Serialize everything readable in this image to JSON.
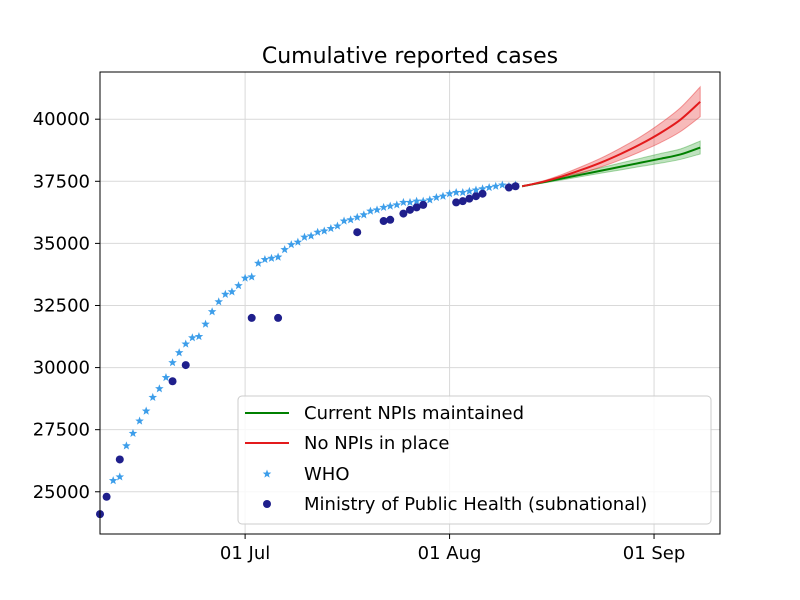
{
  "chart_data": {
    "type": "line",
    "title": "Cumulative reported cases",
    "xlabel": "",
    "ylabel": "",
    "x_range": [
      "2020-06-09",
      "2020-09-11"
    ],
    "ylim": [
      23300,
      41900
    ],
    "grid": true,
    "legend_position": "lower-right",
    "x_ticks": [
      {
        "date": "2020-07-01",
        "label": "01 Jul"
      },
      {
        "date": "2020-08-01",
        "label": "01 Aug"
      },
      {
        "date": "2020-09-01",
        "label": "01 Sep"
      }
    ],
    "y_ticks": [
      25000,
      27500,
      30000,
      32500,
      35000,
      37500,
      40000
    ],
    "series": [
      {
        "name": "Current NPIs maintained",
        "kind": "projection",
        "color": "#008000",
        "band_color": "#2ca02c",
        "x": [
          "2020-08-12",
          "2020-08-15",
          "2020-08-18",
          "2020-08-21",
          "2020-08-24",
          "2020-08-27",
          "2020-08-30",
          "2020-09-02",
          "2020-09-05",
          "2020-09-08"
        ],
        "y": [
          37300,
          37450,
          37610,
          37770,
          37930,
          38090,
          38250,
          38410,
          38580,
          38860
        ],
        "lower": [
          37300,
          37420,
          37550,
          37690,
          37830,
          37960,
          38100,
          38230,
          38380,
          38600
        ],
        "upper": [
          37300,
          37480,
          37670,
          37860,
          38050,
          38240,
          38430,
          38620,
          38800,
          39120
        ]
      },
      {
        "name": "No NPIs in place",
        "kind": "projection",
        "color": "#e31a1c",
        "band_color": "#e41a1c",
        "x": [
          "2020-08-12",
          "2020-08-15",
          "2020-08-18",
          "2020-08-21",
          "2020-08-24",
          "2020-08-27",
          "2020-08-30",
          "2020-09-02",
          "2020-09-05",
          "2020-09-08"
        ],
        "y": [
          37300,
          37470,
          37690,
          37960,
          38260,
          38610,
          39000,
          39450,
          39980,
          40700
        ],
        "lower": [
          37300,
          37440,
          37610,
          37830,
          38080,
          38370,
          38700,
          39060,
          39500,
          40100
        ],
        "upper": [
          37300,
          37500,
          37770,
          38090,
          38440,
          38850,
          39300,
          39840,
          40460,
          41300
        ]
      },
      {
        "name": "WHO",
        "kind": "scatter",
        "marker": "star",
        "color": "#3d9eea",
        "x": [
          "2020-06-11",
          "2020-06-12",
          "2020-06-13",
          "2020-06-14",
          "2020-06-15",
          "2020-06-16",
          "2020-06-17",
          "2020-06-18",
          "2020-06-19",
          "2020-06-20",
          "2020-06-21",
          "2020-06-22",
          "2020-06-23",
          "2020-06-24",
          "2020-06-25",
          "2020-06-26",
          "2020-06-27",
          "2020-06-28",
          "2020-06-29",
          "2020-06-30",
          "2020-07-01",
          "2020-07-02",
          "2020-07-03",
          "2020-07-04",
          "2020-07-05",
          "2020-07-06",
          "2020-07-07",
          "2020-07-08",
          "2020-07-09",
          "2020-07-10",
          "2020-07-11",
          "2020-07-12",
          "2020-07-13",
          "2020-07-14",
          "2020-07-15",
          "2020-07-16",
          "2020-07-17",
          "2020-07-18",
          "2020-07-19",
          "2020-07-20",
          "2020-07-21",
          "2020-07-22",
          "2020-07-23",
          "2020-07-24",
          "2020-07-25",
          "2020-07-26",
          "2020-07-27",
          "2020-07-28",
          "2020-07-29",
          "2020-07-30",
          "2020-07-31",
          "2020-08-01",
          "2020-08-02",
          "2020-08-03",
          "2020-08-04",
          "2020-08-05",
          "2020-08-06",
          "2020-08-07",
          "2020-08-08",
          "2020-08-09",
          "2020-08-10",
          "2020-08-11"
        ],
        "y": [
          25450,
          25600,
          26850,
          27350,
          27850,
          28250,
          28800,
          29150,
          29600,
          30200,
          30600,
          30950,
          31200,
          31250,
          31750,
          32250,
          32650,
          32950,
          33050,
          33300,
          33600,
          33650,
          34200,
          34350,
          34400,
          34450,
          34750,
          34950,
          35050,
          35250,
          35300,
          35450,
          35500,
          35600,
          35700,
          35900,
          35950,
          36050,
          36150,
          36300,
          36350,
          36450,
          36500,
          36550,
          36650,
          36650,
          36700,
          36700,
          36750,
          36850,
          36900,
          37000,
          37050,
          37050,
          37100,
          37150,
          37200,
          37250,
          37300,
          37350,
          37300,
          37350
        ]
      },
      {
        "name": "Ministry of Public Health (subnational)",
        "kind": "scatter",
        "marker": "circle",
        "color": "#1f1f8c",
        "x": [
          "2020-06-09",
          "2020-06-10",
          "2020-06-12",
          "2020-06-20",
          "2020-06-22",
          "2020-07-02",
          "2020-07-06",
          "2020-07-18",
          "2020-07-22",
          "2020-07-23",
          "2020-07-25",
          "2020-07-26",
          "2020-07-27",
          "2020-07-28",
          "2020-08-02",
          "2020-08-03",
          "2020-08-04",
          "2020-08-05",
          "2020-08-06",
          "2020-08-10",
          "2020-08-11"
        ],
        "y": [
          24100,
          24800,
          26300,
          29450,
          30100,
          32000,
          32000,
          35450,
          35900,
          35950,
          36200,
          36350,
          36450,
          36550,
          36650,
          36700,
          36800,
          36900,
          37000,
          37250,
          37300
        ]
      }
    ]
  }
}
